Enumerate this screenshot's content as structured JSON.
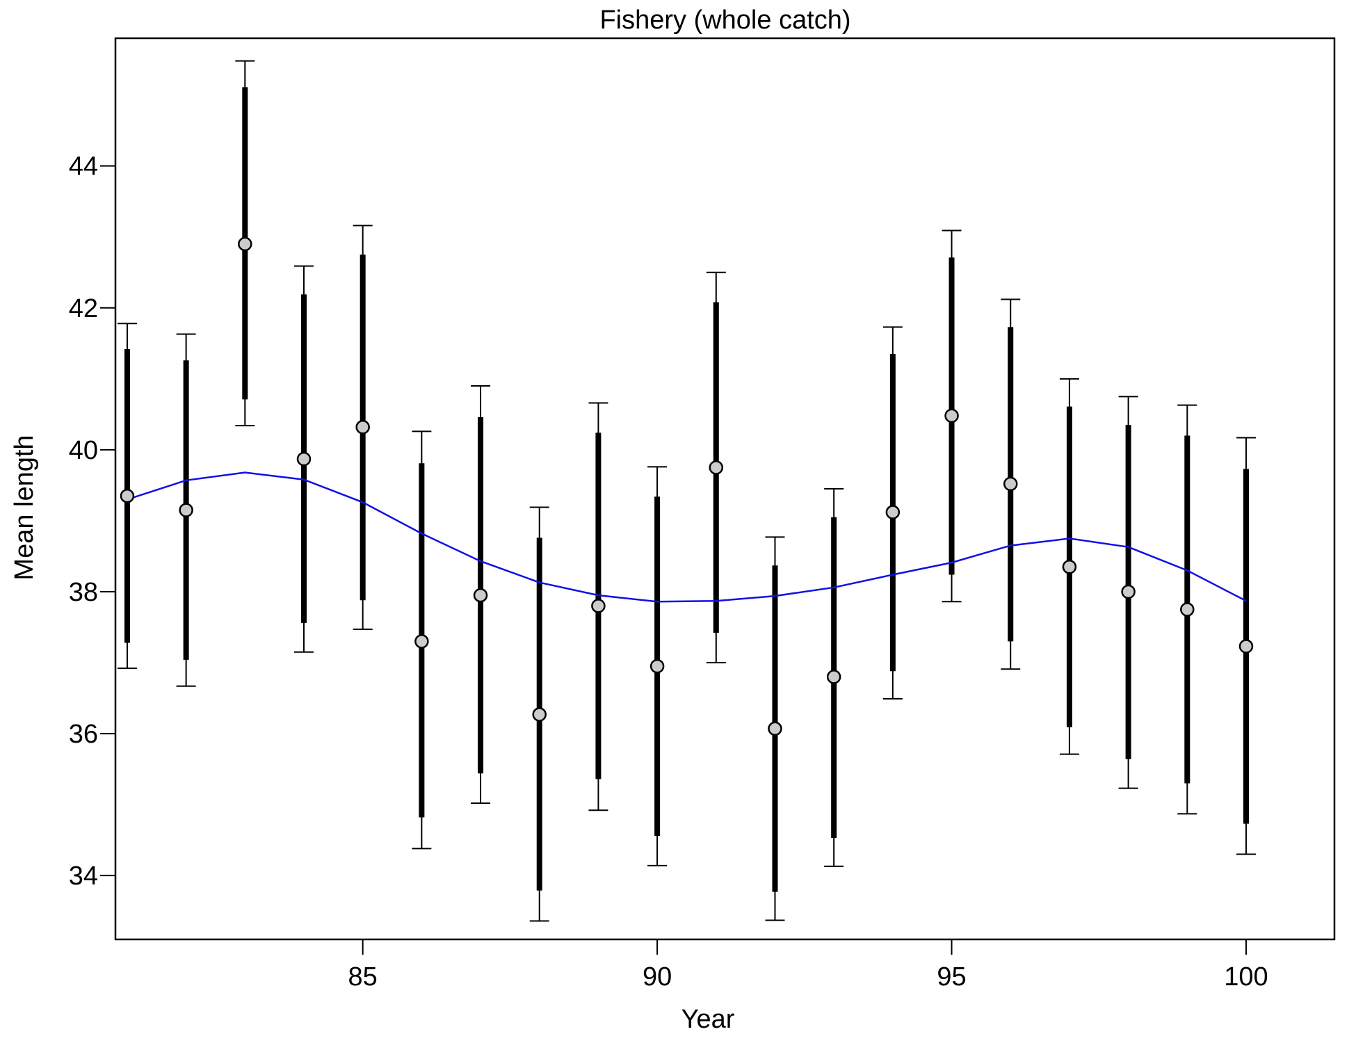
{
  "chart_data": {
    "type": "scatter",
    "title": "Fishery (whole catch)",
    "xlabel": "Year",
    "ylabel": "Mean length",
    "xlim": [
      80.8,
      101.5
    ],
    "ylim": [
      33.1,
      45.8
    ],
    "x_ticks": [
      85,
      90,
      95,
      100
    ],
    "y_ticks": [
      34,
      36,
      38,
      40,
      42,
      44
    ],
    "grid": false,
    "legend": "none",
    "colors": {
      "fit_line": "#1010e8",
      "points_fill": "#cccccc",
      "bars": "#000000"
    },
    "series": [
      {
        "x": [
          81,
          82,
          83,
          84,
          85,
          86,
          87,
          88,
          89,
          90,
          91,
          92,
          93,
          94,
          95,
          96,
          97,
          98,
          99,
          100
        ],
        "observed": [
          39.35,
          39.15,
          42.9,
          39.87,
          40.32,
          37.3,
          37.95,
          36.27,
          37.8,
          36.95,
          39.75,
          36.07,
          36.8,
          39.12,
          40.48,
          39.52,
          38.35,
          38.0,
          37.75,
          37.23
        ],
        "ci_inner_low": [
          37.28,
          37.04,
          40.71,
          37.56,
          37.88,
          34.82,
          35.44,
          33.79,
          35.36,
          34.56,
          37.42,
          33.77,
          34.53,
          36.88,
          38.24,
          37.3,
          36.09,
          35.64,
          35.3,
          34.73
        ],
        "ci_inner_high": [
          41.42,
          41.26,
          45.11,
          42.19,
          42.75,
          39.81,
          40.46,
          38.76,
          40.24,
          39.34,
          42.08,
          38.37,
          39.05,
          41.35,
          42.71,
          41.73,
          40.61,
          40.35,
          40.2,
          39.73
        ],
        "ci_outer_low": [
          36.92,
          36.67,
          40.34,
          37.15,
          37.47,
          34.38,
          35.02,
          33.36,
          34.92,
          34.14,
          37.0,
          33.37,
          34.13,
          36.49,
          37.86,
          36.91,
          35.71,
          35.23,
          34.87,
          34.3
        ],
        "ci_outer_high": [
          41.78,
          41.63,
          45.48,
          42.59,
          43.16,
          40.26,
          40.9,
          39.19,
          40.66,
          39.76,
          42.5,
          38.77,
          39.45,
          41.73,
          43.09,
          42.12,
          41.0,
          40.75,
          40.63,
          40.17
        ],
        "expected": [
          39.3,
          39.57,
          39.68,
          39.58,
          39.26,
          38.82,
          38.43,
          38.13,
          37.95,
          37.86,
          37.87,
          37.94,
          38.06,
          38.24,
          38.41,
          38.65,
          38.75,
          38.63,
          38.3,
          37.87
        ]
      }
    ]
  }
}
